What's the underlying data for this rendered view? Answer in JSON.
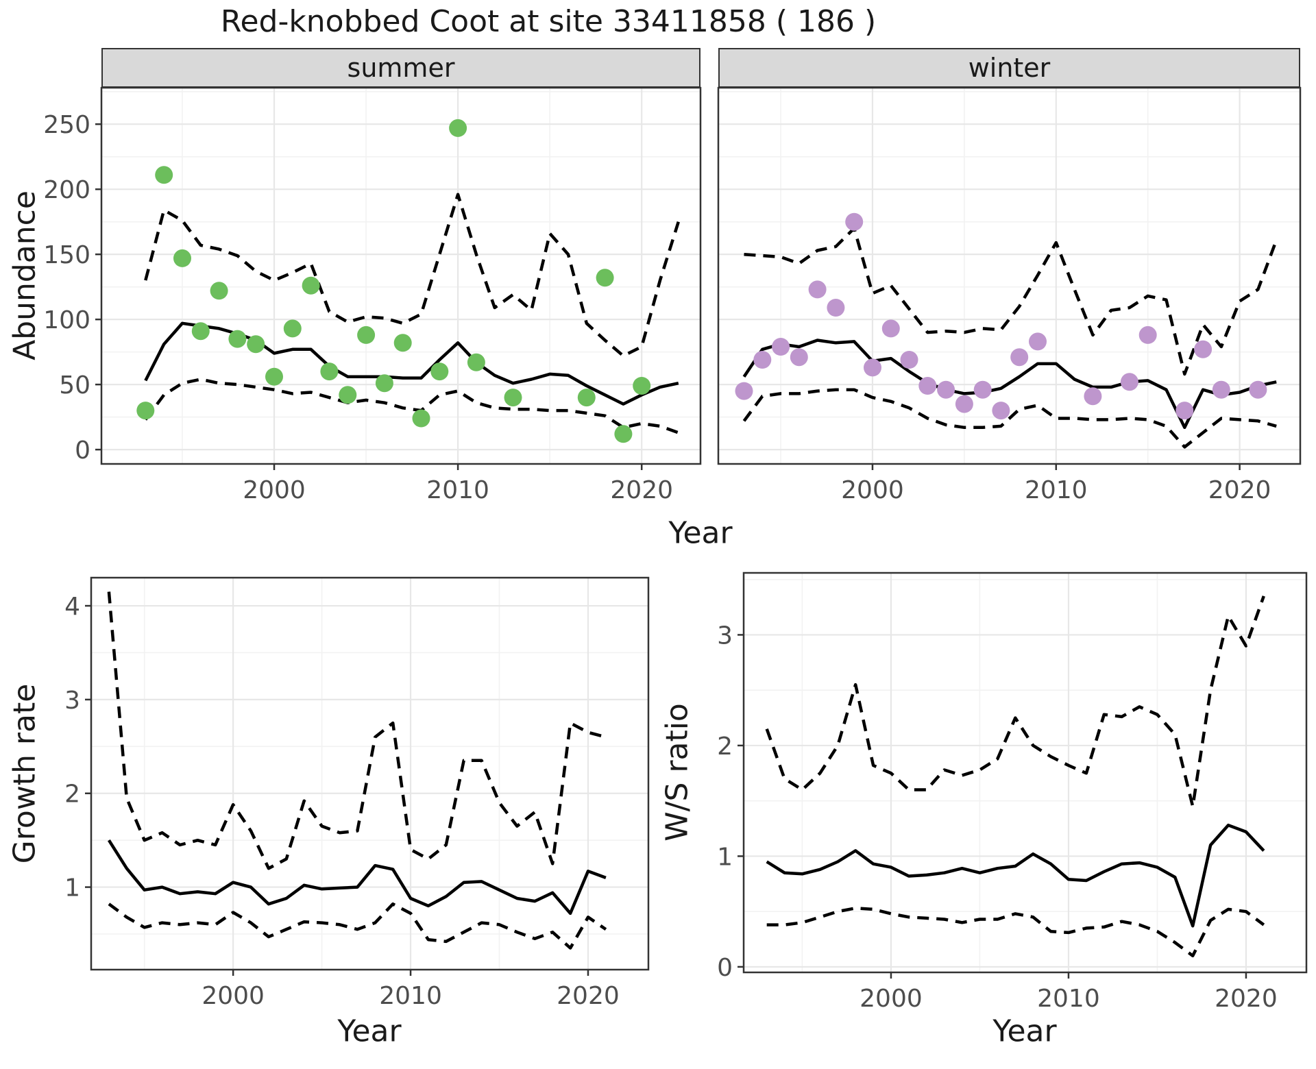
{
  "title": "Red-knobbed Coot at site 33411858 ( 186 )",
  "colors": {
    "summer_points": "#6cbe5c",
    "winter_points": "#be96cd",
    "line": "#000000",
    "strip_bg": "#d9d9d9",
    "panel_border": "#333333",
    "grid_major": "#e7e7e7",
    "grid_minor": "#f2f2f2",
    "axis_text": "#4d4d4d"
  },
  "chart_data": [
    {
      "type": "line",
      "facet_label": "summer",
      "ylabel": "Abundance",
      "xlabel": "Year",
      "xlim": [
        1990.6,
        2023.2
      ],
      "ylim": [
        -11,
        278
      ],
      "x_ticks": [
        2000,
        2010,
        2020
      ],
      "x_minor": [
        1995,
        2005,
        2015
      ],
      "y_ticks": [
        0,
        50,
        100,
        150,
        200,
        250
      ],
      "y_minor": [
        25,
        75,
        125,
        175,
        225,
        275
      ],
      "grid": true,
      "legend": "none",
      "series_styles": {
        "mean": "solid",
        "upper": "dashed",
        "lower": "dashed"
      },
      "years": [
        1993,
        1994,
        1995,
        1996,
        1997,
        1998,
        1999,
        2000,
        2001,
        2002,
        2003,
        2004,
        2005,
        2006,
        2007,
        2008,
        2009,
        2010,
        2011,
        2012,
        2013,
        2014,
        2015,
        2016,
        2017,
        2018,
        2019,
        2020,
        2021,
        2022
      ],
      "mean": [
        53,
        81,
        97,
        95,
        93,
        89,
        84,
        74,
        77,
        77,
        64,
        56,
        56,
        56,
        55,
        55,
        69,
        82,
        67,
        57,
        51,
        54,
        58,
        57,
        49,
        42,
        35,
        42,
        48,
        51
      ],
      "upper": [
        130,
        184,
        176,
        157,
        154,
        149,
        137,
        130,
        136,
        143,
        106,
        98,
        102,
        101,
        97,
        104,
        150,
        196,
        150,
        109,
        119,
        107,
        166,
        150,
        97,
        84,
        72,
        79,
        130,
        175
      ],
      "lower": [
        23,
        42,
        51,
        54,
        51,
        50,
        48,
        46,
        43,
        44,
        40,
        36,
        38,
        36,
        32,
        30,
        42,
        45,
        36,
        32,
        31,
        31,
        30,
        30,
        28,
        26,
        17,
        20,
        18,
        13
      ],
      "points": [
        [
          1993,
          30
        ],
        [
          1994,
          211
        ],
        [
          1995,
          147
        ],
        [
          1996,
          91
        ],
        [
          1997,
          122
        ],
        [
          1998,
          85
        ],
        [
          1999,
          81
        ],
        [
          2000,
          56
        ],
        [
          2001,
          93
        ],
        [
          2002,
          126
        ],
        [
          2003,
          60
        ],
        [
          2004,
          42
        ],
        [
          2005,
          88
        ],
        [
          2006,
          51
        ],
        [
          2007,
          82
        ],
        [
          2008,
          24
        ],
        [
          2009,
          60
        ],
        [
          2010,
          247
        ],
        [
          2011,
          67
        ],
        [
          2013,
          40
        ],
        [
          2017,
          40
        ],
        [
          2018,
          132
        ],
        [
          2019,
          12
        ],
        [
          2020,
          49
        ]
      ],
      "point_color": "#6cbe5c"
    },
    {
      "type": "line",
      "facet_label": "winter",
      "ylabel": "Abundance",
      "xlabel": "Year",
      "xlim": [
        1991.6,
        2023.3
      ],
      "ylim": [
        -11,
        278
      ],
      "x_ticks": [
        2000,
        2010,
        2020
      ],
      "x_minor": [
        1995,
        2005,
        2015
      ],
      "y_ticks": [
        0,
        50,
        100,
        150,
        200,
        250
      ],
      "y_minor": [
        25,
        75,
        125,
        175,
        225,
        275
      ],
      "grid": true,
      "legend": "none",
      "series_styles": {
        "mean": "solid",
        "upper": "dashed",
        "lower": "dashed"
      },
      "years": [
        1993,
        1994,
        1995,
        1996,
        1997,
        1998,
        1999,
        2000,
        2001,
        2002,
        2003,
        2004,
        2005,
        2006,
        2007,
        2008,
        2009,
        2010,
        2011,
        2012,
        2013,
        2014,
        2015,
        2016,
        2017,
        2018,
        2019,
        2020,
        2021,
        2022
      ],
      "mean": [
        56,
        77,
        81,
        79,
        84,
        82,
        83,
        68,
        70,
        60,
        51,
        46,
        43,
        44,
        47,
        56,
        66,
        66,
        54,
        48,
        48,
        52,
        53,
        46,
        17,
        46,
        42,
        44,
        49,
        52
      ],
      "upper": [
        150,
        149,
        148,
        143,
        153,
        156,
        170,
        120,
        126,
        108,
        90,
        91,
        90,
        93,
        92,
        110,
        134,
        159,
        123,
        88,
        107,
        109,
        118,
        115,
        58,
        96,
        79,
        114,
        123,
        161
      ],
      "lower": [
        22,
        41,
        43,
        43,
        45,
        46,
        46,
        40,
        37,
        32,
        24,
        19,
        17,
        17,
        18,
        31,
        34,
        24,
        24,
        23,
        23,
        24,
        23,
        18,
        2,
        13,
        24,
        23,
        22,
        18
      ],
      "points": [
        [
          1993,
          45
        ],
        [
          1994,
          69
        ],
        [
          1995,
          79
        ],
        [
          1996,
          71
        ],
        [
          1997,
          123
        ],
        [
          1998,
          109
        ],
        [
          1999,
          175
        ],
        [
          2000,
          63
        ],
        [
          2001,
          93
        ],
        [
          2002,
          69
        ],
        [
          2003,
          49
        ],
        [
          2004,
          46
        ],
        [
          2005,
          35
        ],
        [
          2006,
          46
        ],
        [
          2007,
          30
        ],
        [
          2008,
          71
        ],
        [
          2009,
          83
        ],
        [
          2012,
          41
        ],
        [
          2014,
          52
        ],
        [
          2015,
          88
        ],
        [
          2017,
          30
        ],
        [
          2018,
          77
        ],
        [
          2019,
          46
        ],
        [
          2021,
          46
        ]
      ],
      "point_color": "#be96cd"
    },
    {
      "type": "line",
      "facet_label": "",
      "ylabel": "Growth rate",
      "xlabel": "Year",
      "xlim": [
        1992.0,
        2023.4
      ],
      "ylim": [
        0.12,
        4.3
      ],
      "x_ticks": [
        2000,
        2010,
        2020
      ],
      "x_minor": [
        1995,
        2005,
        2015
      ],
      "y_ticks": [
        1,
        2,
        3,
        4
      ],
      "y_minor": [
        0.5,
        1.5,
        2.5,
        3.5
      ],
      "grid": true,
      "legend": "none",
      "series_styles": {
        "mean": "solid",
        "upper": "dashed",
        "lower": "dashed"
      },
      "years": [
        1993,
        1994,
        1995,
        1996,
        1997,
        1998,
        1999,
        2000,
        2001,
        2002,
        2003,
        2004,
        2005,
        2006,
        2007,
        2008,
        2009,
        2010,
        2011,
        2012,
        2013,
        2014,
        2015,
        2016,
        2017,
        2018,
        2019,
        2020,
        2021
      ],
      "mean": [
        1.5,
        1.2,
        0.97,
        1.0,
        0.93,
        0.95,
        0.93,
        1.05,
        1.0,
        0.82,
        0.88,
        1.02,
        0.98,
        0.99,
        1.0,
        1.23,
        1.19,
        0.88,
        0.8,
        0.9,
        1.05,
        1.06,
        0.97,
        0.88,
        0.85,
        0.94,
        0.72,
        1.17,
        1.1
      ],
      "upper": [
        4.15,
        1.95,
        1.5,
        1.58,
        1.45,
        1.5,
        1.45,
        1.88,
        1.6,
        1.2,
        1.3,
        1.92,
        1.65,
        1.58,
        1.6,
        2.6,
        2.75,
        1.4,
        1.3,
        1.45,
        2.35,
        2.35,
        1.9,
        1.65,
        1.8,
        1.25,
        2.75,
        2.65,
        2.6
      ],
      "lower": [
        0.82,
        0.68,
        0.57,
        0.62,
        0.6,
        0.62,
        0.6,
        0.73,
        0.62,
        0.47,
        0.55,
        0.63,
        0.62,
        0.6,
        0.55,
        0.62,
        0.82,
        0.72,
        0.44,
        0.42,
        0.52,
        0.62,
        0.6,
        0.52,
        0.45,
        0.52,
        0.35,
        0.68,
        0.55
      ],
      "points": [],
      "point_color": "none"
    },
    {
      "type": "line",
      "facet_label": "",
      "ylabel": "W/S ratio",
      "xlabel": "Year",
      "xlim": [
        1991.7,
        2023.4
      ],
      "ylim": [
        -0.05,
        3.56
      ],
      "x_ticks": [
        2000,
        2010,
        2020
      ],
      "x_minor": [
        1995,
        2005,
        2015
      ],
      "y_ticks": [
        0,
        1,
        2,
        3
      ],
      "y_minor": [
        0.5,
        1.5,
        2.5,
        3.5
      ],
      "grid": true,
      "legend": "none",
      "series_styles": {
        "mean": "solid",
        "upper": "dashed",
        "lower": "dashed"
      },
      "years": [
        1993,
        1994,
        1995,
        1996,
        1997,
        1998,
        1999,
        2000,
        2001,
        2002,
        2003,
        2004,
        2005,
        2006,
        2007,
        2008,
        2009,
        2010,
        2011,
        2012,
        2013,
        2014,
        2015,
        2016,
        2017,
        2018,
        2019,
        2020,
        2021
      ],
      "mean": [
        0.95,
        0.85,
        0.84,
        0.88,
        0.95,
        1.05,
        0.93,
        0.9,
        0.82,
        0.83,
        0.85,
        0.89,
        0.85,
        0.89,
        0.91,
        1.02,
        0.93,
        0.79,
        0.78,
        0.86,
        0.93,
        0.94,
        0.9,
        0.81,
        0.37,
        1.1,
        1.28,
        1.22,
        1.05
      ],
      "upper": [
        2.15,
        1.7,
        1.6,
        1.75,
        2.0,
        2.55,
        1.82,
        1.75,
        1.6,
        1.6,
        1.78,
        1.73,
        1.78,
        1.88,
        2.25,
        2.0,
        1.9,
        1.82,
        1.75,
        2.28,
        2.26,
        2.35,
        2.28,
        2.1,
        1.45,
        2.5,
        3.17,
        2.9,
        3.35
      ],
      "lower": [
        0.38,
        0.38,
        0.4,
        0.45,
        0.5,
        0.53,
        0.52,
        0.48,
        0.45,
        0.44,
        0.43,
        0.4,
        0.43,
        0.43,
        0.48,
        0.45,
        0.32,
        0.31,
        0.35,
        0.36,
        0.41,
        0.38,
        0.32,
        0.22,
        0.1,
        0.42,
        0.52,
        0.5,
        0.38
      ],
      "points": [],
      "point_color": "none"
    }
  ]
}
